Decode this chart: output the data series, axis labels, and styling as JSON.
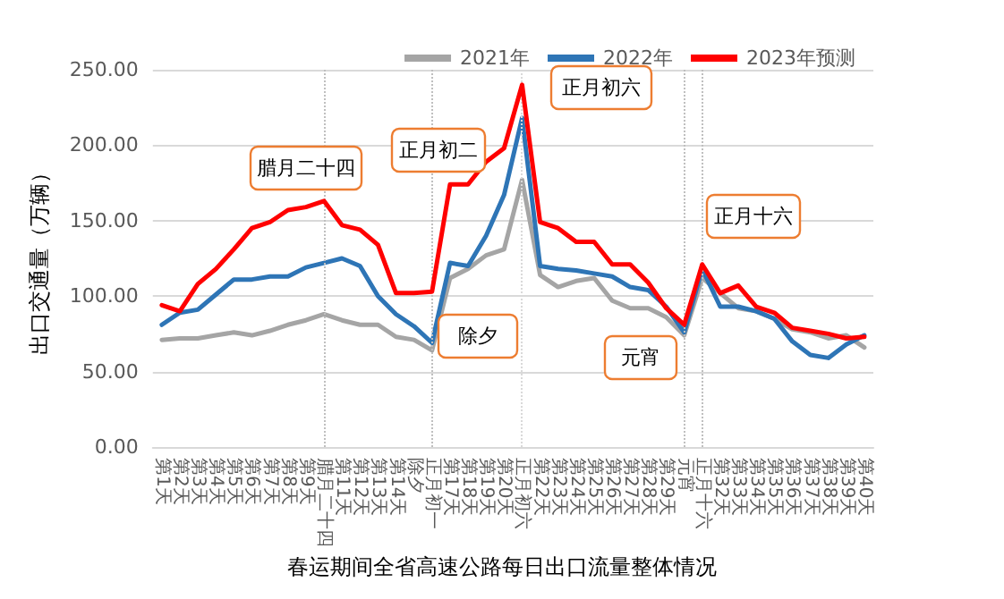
{
  "chart_data": {
    "type": "line",
    "title": "春运期间全省高速公路每日出口流量整体情况",
    "ylabel": "出口交通量（万辆）",
    "categories": [
      "第1天",
      "第2天",
      "第3天",
      "第4天",
      "第5天",
      "第6天",
      "第7天",
      "第8天",
      "第9天",
      "腊月二十四",
      "第11天",
      "第12天",
      "第13天",
      "第14天",
      "除夕",
      "正月初一",
      "第17天",
      "第18天",
      "第19天",
      "第20天",
      "正月初六",
      "第22天",
      "第23天",
      "第24天",
      "第25天",
      "第26天",
      "第27天",
      "第28天",
      "第29天",
      "元宵",
      "正月十六",
      "第32天",
      "第33天",
      "第34天",
      "第35天",
      "第36天",
      "第37天",
      "第38天",
      "第39天",
      "第40天"
    ],
    "series": [
      {
        "name": "2021年",
        "color": "#a5a5a5",
        "values": [
          71,
          72,
          72,
          74,
          76,
          74,
          77,
          81,
          84,
          88,
          84,
          81,
          81,
          73,
          71,
          64,
          112,
          118,
          127,
          131,
          177,
          114,
          106,
          110,
          112,
          97,
          92,
          92,
          86,
          74,
          112,
          102,
          92,
          90,
          85,
          78,
          76,
          72,
          74,
          66
        ]
      },
      {
        "name": "2022年",
        "color": "#2e75b6",
        "values": [
          81,
          89,
          91,
          101,
          111,
          111,
          113,
          113,
          119,
          122,
          125,
          120,
          100,
          88,
          80,
          69,
          122,
          120,
          140,
          167,
          218,
          120,
          118,
          117,
          115,
          113,
          106,
          104,
          93,
          76,
          118,
          93,
          93,
          90,
          85,
          70,
          61,
          59,
          68,
          74
        ]
      },
      {
        "name": "2023年预测",
        "color": "#ff0000",
        "values": [
          94,
          90,
          108,
          118,
          131,
          145,
          149,
          157,
          159,
          163,
          147,
          144,
          134,
          102,
          102,
          103,
          174,
          174,
          189,
          198,
          240,
          149,
          145,
          136,
          136,
          121,
          121,
          109,
          92,
          81,
          121,
          102,
          107,
          93,
          89,
          79,
          77,
          75,
          72,
          73
        ]
      }
    ],
    "ylim": [
      0,
      250
    ],
    "yticks": [
      {
        "value": 0,
        "label": "0.00"
      },
      {
        "value": 50,
        "label": "50.00"
      },
      {
        "value": 100,
        "label": "100.00"
      },
      {
        "value": 150,
        "label": "150.00"
      },
      {
        "value": 200,
        "label": "200.00"
      },
      {
        "value": 250,
        "label": "250.00"
      }
    ],
    "grid": "y",
    "legend": "top right",
    "marker": "none",
    "line_style": "solid",
    "ref_lines": [
      {
        "axis": "x",
        "value": "腊月二十四",
        "color": "#bfbfbf",
        "line_style": "dotted"
      },
      {
        "axis": "x",
        "value": "正月初一",
        "color": "#bfbfbf",
        "line_style": "dotted"
      },
      {
        "axis": "x",
        "value": "正月初六",
        "color": "#d9d9d9",
        "line_style": "dotted"
      },
      {
        "axis": "x",
        "value": "元宵",
        "color": "#bfbfbf",
        "line_style": "dotted"
      },
      {
        "axis": "x",
        "value": "正月十六",
        "color": "#bfbfbf",
        "line_style": "dotted"
      }
    ],
    "annotations": [
      "腊月二十四",
      "正月初二",
      "正月初六",
      "除夕",
      "元宵",
      "正月十六"
    ]
  }
}
